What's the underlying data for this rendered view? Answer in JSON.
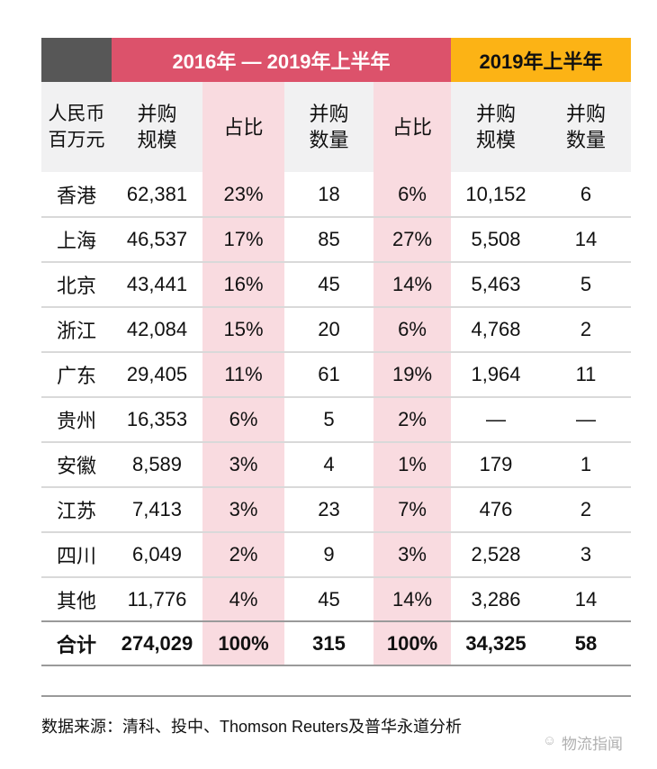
{
  "header": {
    "group1": "2016年 — 2019年上半年",
    "group2": "2019年上半年"
  },
  "columns": {
    "unit": [
      "人民币",
      "百万元"
    ],
    "m_and_a_scale": [
      "并购",
      "规模"
    ],
    "share": "占比",
    "m_and_a_count": [
      "并购",
      "数量"
    ],
    "share2": "占比",
    "h1_scale": [
      "并购",
      "规模"
    ],
    "h1_count": [
      "并购",
      "数量"
    ]
  },
  "rows": [
    {
      "region": "香港",
      "scale": "62,381",
      "scale_pct": "23%",
      "count": "18",
      "count_pct": "6%",
      "h1_scale": "10,152",
      "h1_count": "6"
    },
    {
      "region": "上海",
      "scale": "46,537",
      "scale_pct": "17%",
      "count": "85",
      "count_pct": "27%",
      "h1_scale": "5,508",
      "h1_count": "14"
    },
    {
      "region": "北京",
      "scale": "43,441",
      "scale_pct": "16%",
      "count": "45",
      "count_pct": "14%",
      "h1_scale": "5,463",
      "h1_count": "5"
    },
    {
      "region": "浙江",
      "scale": "42,084",
      "scale_pct": "15%",
      "count": "20",
      "count_pct": "6%",
      "h1_scale": "4,768",
      "h1_count": "2"
    },
    {
      "region": "广东",
      "scale": "29,405",
      "scale_pct": "11%",
      "count": "61",
      "count_pct": "19%",
      "h1_scale": "1,964",
      "h1_count": "11"
    },
    {
      "region": "贵州",
      "scale": "16,353",
      "scale_pct": "6%",
      "count": "5",
      "count_pct": "2%",
      "h1_scale": "—",
      "h1_count": "—"
    },
    {
      "region": "安徽",
      "scale": "8,589",
      "scale_pct": "3%",
      "count": "4",
      "count_pct": "1%",
      "h1_scale": "179",
      "h1_count": "1"
    },
    {
      "region": "江苏",
      "scale": "7,413",
      "scale_pct": "3%",
      "count": "23",
      "count_pct": "7%",
      "h1_scale": "476",
      "h1_count": "2"
    },
    {
      "region": "四川",
      "scale": "6,049",
      "scale_pct": "2%",
      "count": "9",
      "count_pct": "3%",
      "h1_scale": "2,528",
      "h1_count": "3"
    },
    {
      "region": "其他",
      "scale": "11,776",
      "scale_pct": "4%",
      "count": "45",
      "count_pct": "14%",
      "h1_scale": "3,286",
      "h1_count": "14"
    }
  ],
  "total": {
    "region": "合计",
    "scale": "274,029",
    "scale_pct": "100%",
    "count": "315",
    "count_pct": "100%",
    "h1_scale": "34,325",
    "h1_count": "58"
  },
  "footer": {
    "source": "数据来源：清科、投中、Thomson Reuters及普华永道分析",
    "watermark": "物流指闻"
  },
  "colors": {
    "dark": "#575757",
    "red": "#dc526b",
    "yellow": "#fcb315",
    "pink": "#f9dbe0",
    "subheader_bg": "#f1f1f2"
  }
}
